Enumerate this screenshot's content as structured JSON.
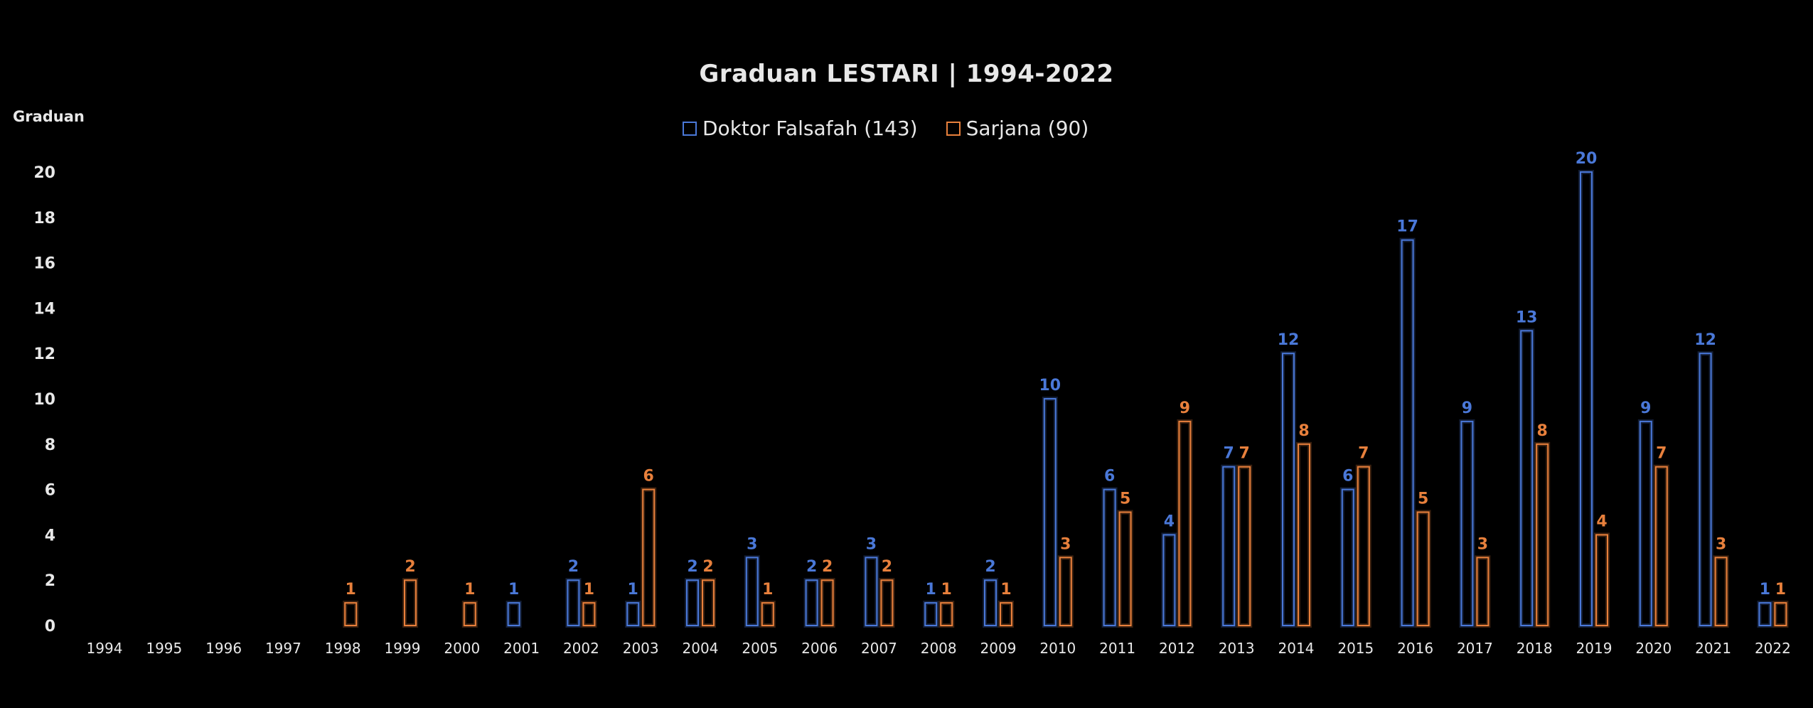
{
  "chart_data": {
    "type": "bar",
    "title": "Graduan  LESTARI | 1994-2022",
    "ylabel": "Graduan",
    "xlabel": "",
    "ylim": [
      0,
      20
    ],
    "yticks": [
      0,
      2,
      4,
      6,
      8,
      10,
      12,
      14,
      16,
      18,
      20
    ],
    "grid": false,
    "legend_position": "top-center",
    "categories": [
      "1994",
      "1995",
      "1996",
      "1997",
      "1998",
      "1999",
      "2000",
      "2001",
      "2002",
      "2003",
      "2004",
      "2005",
      "2006",
      "2007",
      "2008",
      "2009",
      "2010",
      "2011",
      "2012",
      "2013",
      "2014",
      "2015",
      "2016",
      "2017",
      "2018",
      "2019",
      "2020",
      "2021",
      "2022"
    ],
    "series": [
      {
        "name": "Doktor Falsafah (143)",
        "color": "#4a78d8",
        "values": [
          null,
          null,
          null,
          null,
          null,
          null,
          null,
          1,
          2,
          1,
          2,
          3,
          2,
          3,
          1,
          2,
          10,
          6,
          4,
          7,
          12,
          6,
          17,
          9,
          13,
          20,
          9,
          12,
          1
        ]
      },
      {
        "name": "Sarjana (90)",
        "color": "#e8803c",
        "values": [
          null,
          null,
          null,
          null,
          1,
          2,
          1,
          null,
          1,
          6,
          2,
          1,
          2,
          2,
          1,
          1,
          3,
          5,
          9,
          7,
          8,
          7,
          5,
          3,
          8,
          4,
          7,
          3,
          1
        ]
      }
    ]
  }
}
